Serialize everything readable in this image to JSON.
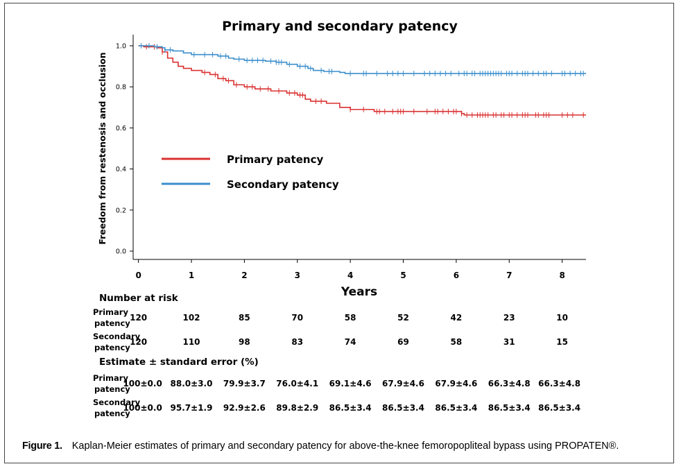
{
  "chart_data": {
    "type": "line",
    "title": "Primary and secondary patency",
    "xlabel": "Years",
    "ylabel": "Freedom from restenosis and occlusion",
    "xlim": [
      -0.1,
      8.45
    ],
    "ylim": [
      0.0,
      1.0
    ],
    "xticks": [
      "0",
      "1",
      "2",
      "3",
      "4",
      "5",
      "6",
      "7",
      "8"
    ],
    "yticks": [
      "0.0",
      "0.2",
      "0.4",
      "0.6",
      "0.8",
      "1.0"
    ],
    "grid": false,
    "legend_position": "middle-left",
    "series": [
      {
        "name": "Primary patency",
        "color": "#d9302f",
        "steps": [
          [
            0,
            1.0
          ],
          [
            0.1,
            0.995
          ],
          [
            0.35,
            0.99
          ],
          [
            0.45,
            0.97
          ],
          [
            0.55,
            0.94
          ],
          [
            0.65,
            0.92
          ],
          [
            0.75,
            0.9
          ],
          [
            0.85,
            0.89
          ],
          [
            1.0,
            0.88
          ],
          [
            1.2,
            0.87
          ],
          [
            1.35,
            0.86
          ],
          [
            1.5,
            0.84
          ],
          [
            1.65,
            0.83
          ],
          [
            1.8,
            0.81
          ],
          [
            2.0,
            0.8
          ],
          [
            2.2,
            0.79
          ],
          [
            2.5,
            0.78
          ],
          [
            2.8,
            0.77
          ],
          [
            3.0,
            0.76
          ],
          [
            3.15,
            0.74
          ],
          [
            3.25,
            0.73
          ],
          [
            3.55,
            0.72
          ],
          [
            3.8,
            0.7
          ],
          [
            4.0,
            0.69
          ],
          [
            4.45,
            0.68
          ],
          [
            6.1,
            0.67
          ],
          [
            6.15,
            0.663
          ]
        ],
        "end": 8.45,
        "censored": [
          0.15,
          0.3,
          0.45,
          1.25,
          1.45,
          1.6,
          1.7,
          1.85,
          2.05,
          2.15,
          2.3,
          2.45,
          2.65,
          2.85,
          2.95,
          3.05,
          3.1,
          3.35,
          3.45,
          4.0,
          4.25,
          4.5,
          4.55,
          4.65,
          4.8,
          4.9,
          4.95,
          5.0,
          5.2,
          5.45,
          5.6,
          5.65,
          5.75,
          5.85,
          5.95,
          6.0,
          6.1,
          6.2,
          6.3,
          6.4,
          6.45,
          6.5,
          6.55,
          6.6,
          6.7,
          6.75,
          6.85,
          6.9,
          7.0,
          7.05,
          7.15,
          7.25,
          7.3,
          7.35,
          7.5,
          7.55,
          7.65,
          7.7,
          7.75,
          8.0,
          8.1,
          8.2,
          8.4
        ]
      },
      {
        "name": "Secondary patency",
        "color": "#3a8ecc",
        "steps": [
          [
            0,
            1.0
          ],
          [
            0.3,
            0.995
          ],
          [
            0.45,
            0.99
          ],
          [
            0.5,
            0.98
          ],
          [
            0.65,
            0.975
          ],
          [
            0.85,
            0.965
          ],
          [
            1.0,
            0.957
          ],
          [
            1.5,
            0.95
          ],
          [
            1.7,
            0.94
          ],
          [
            1.8,
            0.935
          ],
          [
            2.0,
            0.929
          ],
          [
            2.4,
            0.925
          ],
          [
            2.6,
            0.92
          ],
          [
            2.8,
            0.91
          ],
          [
            3.0,
            0.9
          ],
          [
            3.2,
            0.89
          ],
          [
            3.3,
            0.88
          ],
          [
            3.5,
            0.875
          ],
          [
            3.8,
            0.87
          ],
          [
            3.9,
            0.865
          ]
        ],
        "end": 8.45,
        "censored": [
          0.05,
          0.2,
          0.35,
          0.5,
          0.6,
          1.05,
          1.25,
          1.4,
          1.55,
          1.65,
          1.9,
          2.05,
          2.15,
          2.25,
          2.35,
          2.5,
          2.6,
          2.65,
          2.7,
          2.85,
          3.05,
          3.15,
          3.25,
          3.45,
          3.6,
          3.65,
          4.0,
          4.25,
          4.3,
          4.5,
          4.7,
          4.8,
          4.9,
          5.0,
          5.2,
          5.4,
          5.5,
          5.6,
          5.7,
          5.8,
          5.9,
          6.05,
          6.15,
          6.2,
          6.3,
          6.35,
          6.45,
          6.5,
          6.55,
          6.6,
          6.65,
          6.7,
          6.75,
          6.8,
          6.85,
          6.95,
          7.0,
          7.05,
          7.15,
          7.25,
          7.3,
          7.35,
          7.45,
          7.55,
          7.65,
          7.7,
          7.8,
          8.0,
          8.05,
          8.15,
          8.25,
          8.35,
          8.4
        ]
      }
    ]
  },
  "legend": [
    {
      "label": "Primary patency",
      "color": "#d9302f"
    },
    {
      "label": "Secondary patency",
      "color": "#3a8ecc"
    }
  ],
  "risk_table": {
    "title": "Number at risk",
    "rows": [
      {
        "label1": "Primary",
        "label2": "patency",
        "values": [
          "120",
          "102",
          "85",
          "70",
          "58",
          "52",
          "42",
          "23",
          "10"
        ]
      },
      {
        "label1": "Secondary",
        "label2": "patency",
        "values": [
          "120",
          "110",
          "98",
          "83",
          "74",
          "69",
          "58",
          "31",
          "15"
        ]
      }
    ]
  },
  "estimate_table": {
    "title": "Estimate ± standard error (%)",
    "rows": [
      {
        "label1": "Primary",
        "label2": "patency",
        "values": [
          "100±0.0",
          "88.0±3.0",
          "79.9±3.7",
          "76.0±4.1",
          "69.1±4.6",
          "67.9±4.6",
          "67.9±4.6",
          "66.3±4.8",
          "66.3±4.8"
        ]
      },
      {
        "label1": "Secondary",
        "label2": "patency",
        "values": [
          "100±0.0",
          "95.7±1.9",
          "92.9±2.6",
          "89.8±2.9",
          "86.5±3.4",
          "86.5±3.4",
          "86.5±3.4",
          "86.5±3.4",
          "86.5±3.4"
        ]
      }
    ]
  },
  "caption": {
    "label": "Figure 1.",
    "text": "Kaplan-Meier estimates of primary and secondary patency for above-the-knee femoropopliteal bypass using PROPATEN®."
  }
}
